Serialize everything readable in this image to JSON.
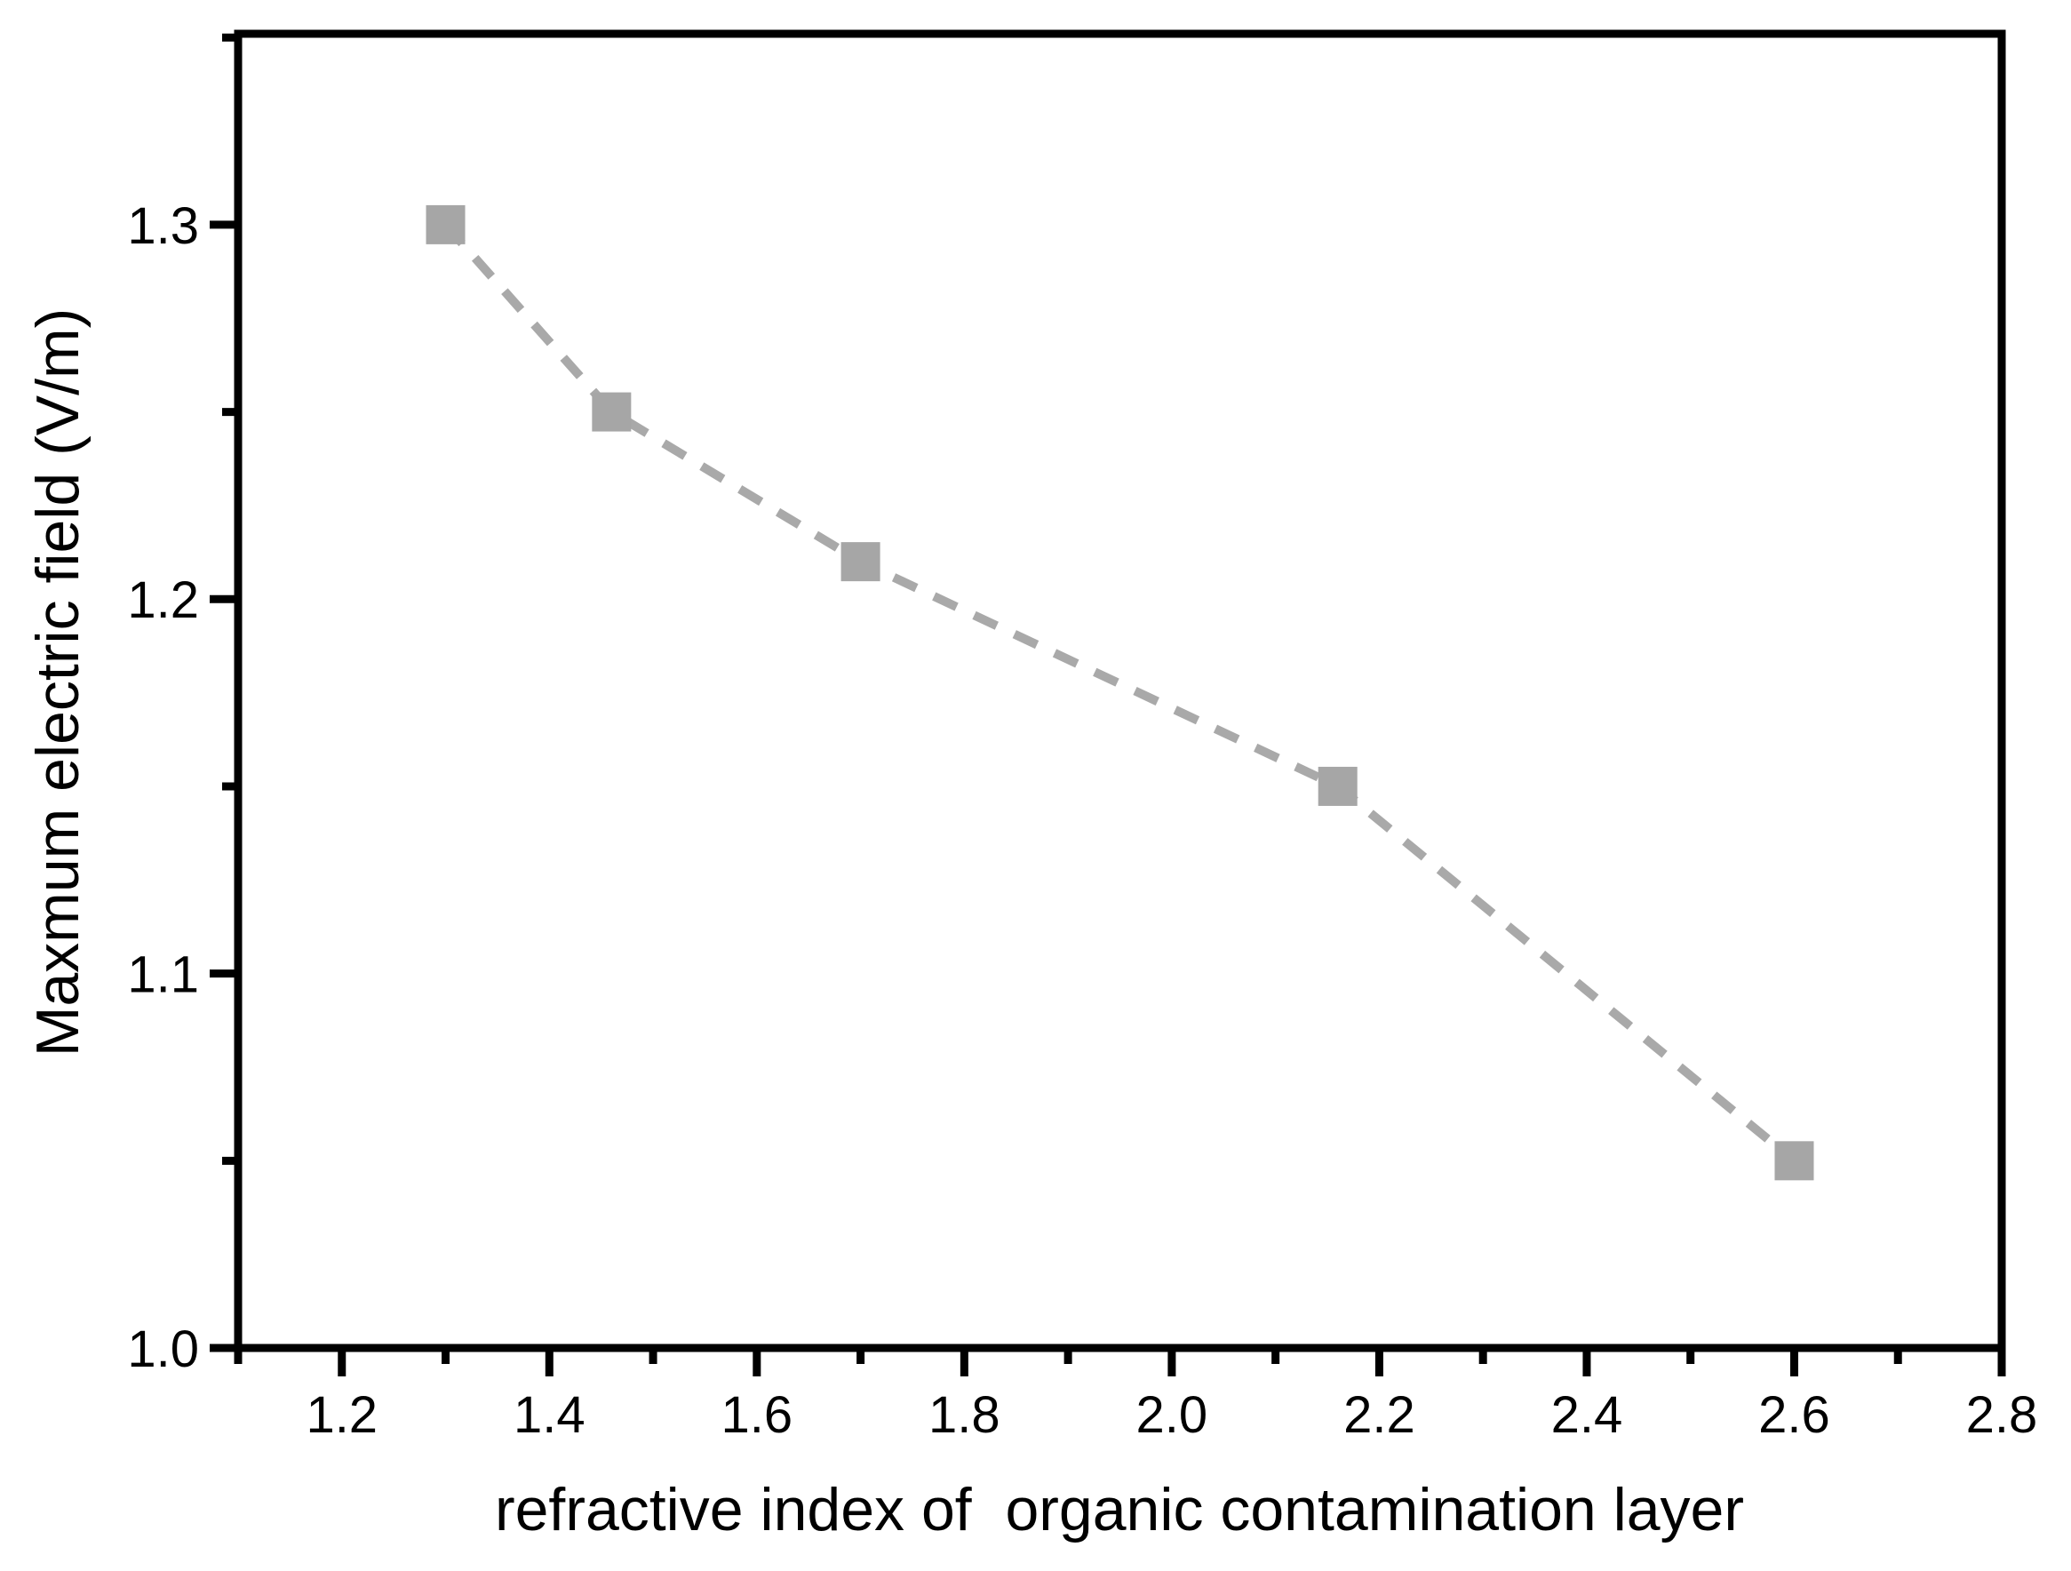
{
  "chart_data": {
    "type": "line",
    "subtype": "scatter-with-dashed-line",
    "title": "",
    "xlabel": "refractive index of  organic contamination layer",
    "ylabel": "Maxmum electric field (V/m)",
    "xlim": [
      1.1,
      2.8
    ],
    "ylim": [
      1.0,
      1.351
    ],
    "grid": false,
    "legend": false,
    "background_color": "#ffffff",
    "axis_color": "#000000",
    "x_major_ticks": [
      1.2,
      1.4,
      1.6,
      1.8,
      2.0,
      2.2,
      2.4,
      2.6,
      2.8
    ],
    "x_major_tick_labels": [
      "1.2",
      "1.4",
      "1.6",
      "1.8",
      "2.0",
      "2.2",
      "2.4",
      "2.6",
      "2.8"
    ],
    "x_minor_ticks": [
      1.1,
      1.3,
      1.5,
      1.7,
      1.9,
      2.1,
      2.3,
      2.5,
      2.7
    ],
    "y_major_ticks": [
      1.0,
      1.1,
      1.2,
      1.3
    ],
    "y_major_tick_labels": [
      "1.0",
      "1.1",
      "1.2",
      "1.3"
    ],
    "y_minor_ticks": [
      1.05,
      1.15,
      1.25,
      1.35
    ],
    "series": [
      {
        "name": "maximum electric field",
        "x": [
          1.3,
          1.46,
          1.7,
          2.16,
          2.6
        ],
        "y": [
          1.3,
          1.25,
          1.21,
          1.15,
          1.05
        ],
        "marker": "square",
        "marker_color": "#a6a6a6",
        "line_style": "dashed",
        "line_color": "#a9a9a9"
      }
    ]
  }
}
